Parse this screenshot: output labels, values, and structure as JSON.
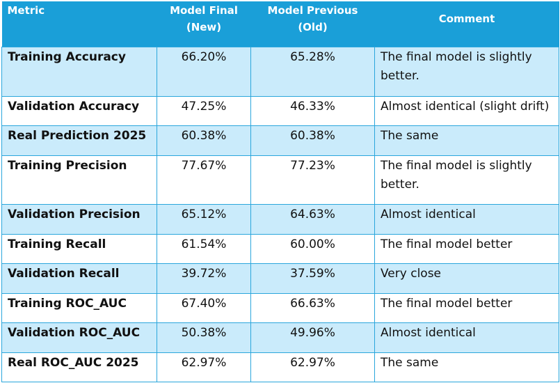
{
  "table": {
    "headers": {
      "metric": "Metric",
      "final": "Model Final (New)",
      "previous": "Model Previous (Old)",
      "comment": "Comment"
    },
    "rows": [
      {
        "metric": "Training Accuracy",
        "final": "66.20%",
        "previous": "65.28%",
        "comment": "The final model is slightly better."
      },
      {
        "metric": "Validation Accuracy",
        "final": "47.25%",
        "previous": "46.33%",
        "comment": "Almost identical (slight drift)"
      },
      {
        "metric": "Real Prediction 2025",
        "final": "60.38%",
        "previous": "60.38%",
        "comment": "The same"
      },
      {
        "metric": "Training Precision",
        "final": "77.67%",
        "previous": "77.23%",
        "comment": "The final model is slightly better."
      },
      {
        "metric": "Validation Precision",
        "final": "65.12%",
        "previous": "64.63%",
        "comment": "Almost identical"
      },
      {
        "metric": "Training Recall",
        "final": "61.54%",
        "previous": "60.00%",
        "comment": "The final model better"
      },
      {
        "metric": "Validation Recall",
        "final": "39.72%",
        "previous": "37.59%",
        "comment": "Very close"
      },
      {
        "metric": "Training ROC_AUC",
        "final": "67.40%",
        "previous": "66.63%",
        "comment": "The final model better"
      },
      {
        "metric": "Validation ROC_AUC",
        "final": "50.38%",
        "previous": "49.96%",
        "comment": "Almost identical"
      },
      {
        "metric": "Real ROC_AUC 2025",
        "final": "62.97%",
        "previous": "62.97%",
        "comment": "The same"
      }
    ]
  },
  "colors": {
    "header_bg": "#1a9fd8",
    "header_text": "#ffffff",
    "row_band": "#caebfb",
    "border": "#2aa6dc"
  }
}
